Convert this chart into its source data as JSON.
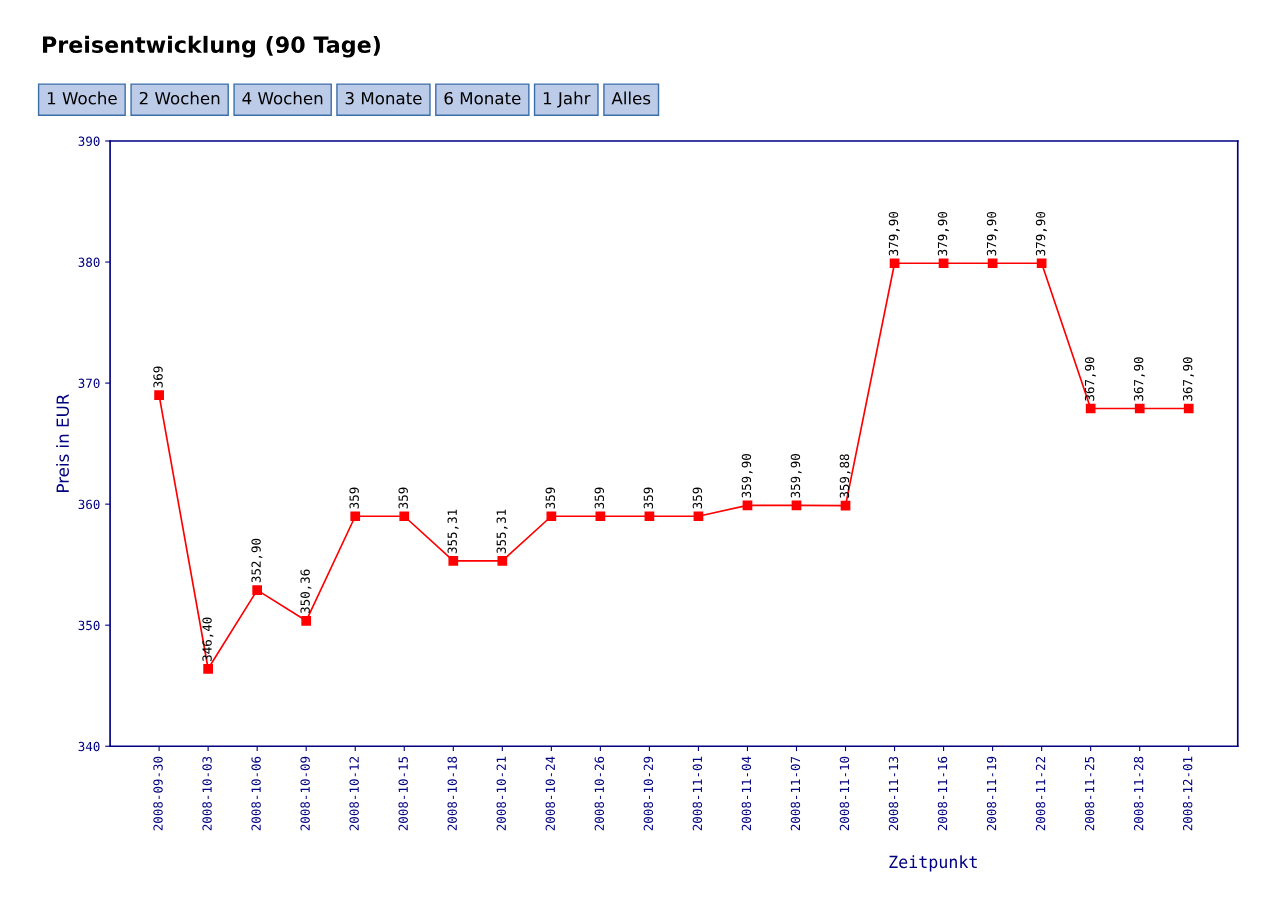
{
  "chart_data": {
    "type": "line",
    "title": "Preisentwicklung (90 Tage)",
    "annotations": [
      "1 Woche",
      "2 Wochen",
      "4 Wochen",
      "3 Monate",
      "6 Monate",
      "1 Jahr",
      "Alles"
    ],
    "xlabel": "Zeitpunkt",
    "ylabel": "Preis in EUR",
    "categories": [
      "2008-09-30",
      "2008-10-03",
      "2008-10-06",
      "2008-10-09",
      "2008-10-12",
      "2008-10-15",
      "2008-10-18",
      "2008-10-21",
      "2008-10-24",
      "2008-10-26",
      "2008-10-29",
      "2008-11-01",
      "2008-11-04",
      "2008-11-07",
      "2008-11-10",
      "2008-11-13",
      "2008-11-16",
      "2008-11-19",
      "2008-11-22",
      "2008-11-25",
      "2008-11-28",
      "2008-12-01"
    ],
    "values": [
      369,
      346.4,
      352.9,
      350.36,
      359,
      359,
      355.31,
      355.31,
      359,
      359,
      359,
      359,
      359.9,
      359.9,
      359.88,
      379.9,
      379.9,
      379.9,
      379.9,
      367.9,
      367.9,
      367.9
    ],
    "value_labels": [
      "369",
      "346,40",
      "352,90",
      "350,36",
      "359",
      "359",
      "355,31",
      "355,31",
      "359",
      "359",
      "359",
      "359",
      "359,90",
      "359,90",
      "359,88",
      "379,90",
      "379,90",
      "379,90",
      "379,90",
      "367,90",
      "367,90",
      "367,90"
    ],
    "color": "#ff0000",
    "marker": "square",
    "line_style": "solid",
    "ylim": [
      340,
      390
    ],
    "yticks": [
      340,
      350,
      360,
      370,
      380,
      390
    ],
    "grid": false,
    "legend": false
  }
}
